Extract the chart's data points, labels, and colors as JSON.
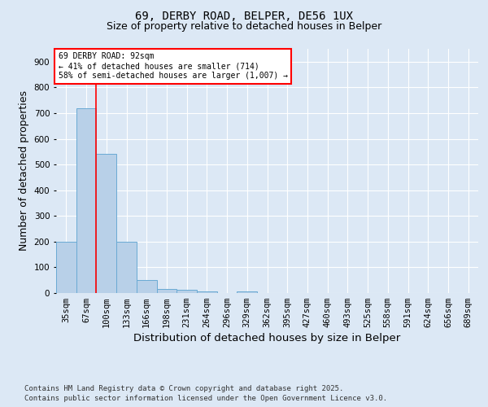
{
  "title_line1": "69, DERBY ROAD, BELPER, DE56 1UX",
  "title_line2": "Size of property relative to detached houses in Belper",
  "xlabel": "Distribution of detached houses by size in Belper",
  "ylabel": "Number of detached properties",
  "categories": [
    "35sqm",
    "67sqm",
    "100sqm",
    "133sqm",
    "166sqm",
    "198sqm",
    "231sqm",
    "264sqm",
    "296sqm",
    "329sqm",
    "362sqm",
    "395sqm",
    "427sqm",
    "460sqm",
    "493sqm",
    "525sqm",
    "558sqm",
    "591sqm",
    "624sqm",
    "656sqm",
    "689sqm"
  ],
  "values": [
    200,
    720,
    540,
    200,
    50,
    15,
    12,
    7,
    0,
    7,
    0,
    0,
    0,
    0,
    0,
    0,
    0,
    0,
    0,
    0,
    0
  ],
  "bar_color": "#b8d0e8",
  "bar_edge_color": "#6aaad4",
  "annotation_text": "69 DERBY ROAD: 92sqm\n← 41% of detached houses are smaller (714)\n58% of semi-detached houses are larger (1,007) →",
  "ylim": [
    0,
    950
  ],
  "yticks": [
    0,
    100,
    200,
    300,
    400,
    500,
    600,
    700,
    800,
    900
  ],
  "background_color": "#dce8f5",
  "plot_background": "#dce8f5",
  "footer_line1": "Contains HM Land Registry data © Crown copyright and database right 2025.",
  "footer_line2": "Contains public sector information licensed under the Open Government Licence v3.0.",
  "title_fontsize": 10,
  "subtitle_fontsize": 9,
  "axis_label_fontsize": 9,
  "tick_fontsize": 7.5,
  "annotation_fontsize": 7,
  "footer_fontsize": 6.5
}
